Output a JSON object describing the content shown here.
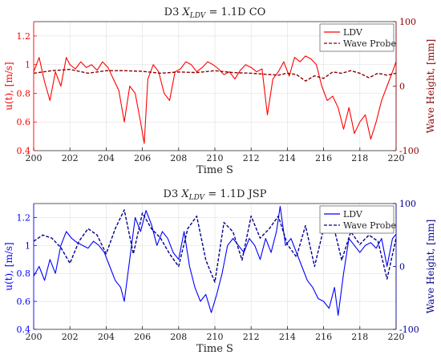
{
  "chart_data": [
    {
      "type": "line",
      "title": "D3 X_LDV = 1.1D CO",
      "title_main": "D3",
      "title_var": "X",
      "title_sub": "LDV",
      "title_rest": " = 1.1D CO",
      "xlabel": "Time S",
      "ylabel": "u(t), [m/s]",
      "y2label": "Wave Height, [mm]",
      "xlim": [
        200,
        220
      ],
      "ylim": [
        0.4,
        1.3
      ],
      "y2lim": [
        -100,
        100
      ],
      "xticks": [
        "200",
        "202",
        "204",
        "206",
        "208",
        "210",
        "212",
        "214",
        "216",
        "218",
        "220"
      ],
      "yticks": [
        "0.4",
        "0.6",
        "0.8",
        "1",
        "1.2"
      ],
      "y2ticks": [
        "-100",
        "0",
        "100"
      ],
      "grid": true,
      "legend_position": "top-right",
      "left_color": "#ff0000",
      "right_color": "#8b0000",
      "series": [
        {
          "name": "LDV",
          "axis": "left",
          "style": "solid",
          "color": "#ff0000",
          "x": [
            200.0,
            200.3,
            200.6,
            200.9,
            201.2,
            201.5,
            201.8,
            202.0,
            202.3,
            202.6,
            202.9,
            203.2,
            203.5,
            203.8,
            204.1,
            204.4,
            204.7,
            205.0,
            205.3,
            205.6,
            205.9,
            206.1,
            206.3,
            206.6,
            206.9,
            207.2,
            207.5,
            207.8,
            208.1,
            208.4,
            208.7,
            209.0,
            209.3,
            209.6,
            209.9,
            210.2,
            210.5,
            210.8,
            211.1,
            211.4,
            211.7,
            212.0,
            212.3,
            212.6,
            212.9,
            213.2,
            213.5,
            213.8,
            214.1,
            214.4,
            214.7,
            215.0,
            215.3,
            215.6,
            215.9,
            216.2,
            216.5,
            216.8,
            217.1,
            217.4,
            217.7,
            218.0,
            218.3,
            218.6,
            218.9,
            219.2,
            219.5,
            219.8,
            220.0
          ],
          "values": [
            0.95,
            1.05,
            0.88,
            0.75,
            0.95,
            0.85,
            1.05,
            1.0,
            0.97,
            1.02,
            0.98,
            1.0,
            0.96,
            1.02,
            0.98,
            0.9,
            0.82,
            0.6,
            0.85,
            0.8,
            0.6,
            0.45,
            0.9,
            1.0,
            0.95,
            0.8,
            0.75,
            0.95,
            0.97,
            1.02,
            1.0,
            0.95,
            0.98,
            1.02,
            1.0,
            0.97,
            0.93,
            0.95,
            0.9,
            0.96,
            1.0,
            0.98,
            0.95,
            0.97,
            0.65,
            0.9,
            0.95,
            1.02,
            0.92,
            1.05,
            1.02,
            1.06,
            1.04,
            1.0,
            0.85,
            0.75,
            0.78,
            0.7,
            0.55,
            0.7,
            0.52,
            0.6,
            0.65,
            0.48,
            0.6,
            0.75,
            0.85,
            0.95,
            1.02
          ]
        },
        {
          "name": "Wave Probe",
          "axis": "right",
          "style": "dashed",
          "color": "#8b0000",
          "x": [
            200.0,
            201.0,
            202.0,
            203.0,
            204.0,
            205.0,
            206.0,
            207.0,
            208.0,
            209.0,
            210.0,
            211.0,
            212.0,
            213.0,
            213.5,
            214.0,
            214.5,
            215.0,
            215.5,
            216.0,
            216.5,
            217.0,
            217.5,
            218.0,
            218.5,
            219.0,
            219.5,
            220.0
          ],
          "values": [
            20,
            24,
            26,
            20,
            24,
            24,
            23,
            20,
            22,
            21,
            24,
            21,
            20,
            18,
            17,
            20,
            18,
            8,
            16,
            12,
            22,
            20,
            24,
            20,
            13,
            20,
            17,
            20
          ]
        }
      ]
    },
    {
      "type": "line",
      "title": "D3 X_LDV = 1.1D JSP",
      "title_main": "D3",
      "title_var": "X",
      "title_sub": "LDV",
      "title_rest": " = 1.1D JSP",
      "xlabel": "Time S",
      "ylabel": "u(t), [m/s]",
      "y2label": "Wave Height, [mm]",
      "xlim": [
        200,
        220
      ],
      "ylim": [
        0.4,
        1.3
      ],
      "y2lim": [
        -100,
        100
      ],
      "xticks": [
        "200",
        "202",
        "204",
        "206",
        "208",
        "210",
        "212",
        "214",
        "216",
        "218",
        "220"
      ],
      "yticks": [
        "0.4",
        "0.6",
        "0.8",
        "1",
        "1.2"
      ],
      "y2ticks": [
        "-100",
        "0",
        "100"
      ],
      "grid": true,
      "legend_position": "top-right",
      "left_color": "#0000ff",
      "right_color": "#00008b",
      "series": [
        {
          "name": "LDV",
          "axis": "left",
          "style": "solid",
          "color": "#0000ff",
          "x": [
            200.0,
            200.3,
            200.6,
            200.9,
            201.2,
            201.5,
            201.8,
            202.1,
            202.4,
            202.7,
            203.0,
            203.3,
            203.6,
            203.9,
            204.2,
            204.5,
            204.8,
            205.0,
            205.3,
            205.6,
            205.9,
            206.2,
            206.5,
            206.8,
            207.1,
            207.4,
            207.7,
            208.0,
            208.3,
            208.6,
            208.9,
            209.2,
            209.5,
            209.8,
            210.1,
            210.4,
            210.7,
            211.0,
            211.3,
            211.6,
            211.9,
            212.2,
            212.5,
            212.8,
            213.1,
            213.4,
            213.6,
            213.9,
            214.2,
            214.5,
            214.8,
            215.1,
            215.4,
            215.7,
            216.0,
            216.3,
            216.6,
            216.8,
            217.1,
            217.4,
            217.7,
            218.0,
            218.3,
            218.6,
            218.9,
            219.2,
            219.5,
            219.8,
            220.0
          ],
          "values": [
            0.78,
            0.85,
            0.75,
            0.9,
            0.8,
            1.0,
            1.1,
            1.05,
            1.02,
            1.0,
            0.98,
            1.03,
            1.0,
            0.95,
            0.85,
            0.75,
            0.7,
            0.6,
            0.9,
            1.2,
            1.1,
            1.25,
            1.15,
            1.0,
            1.1,
            1.05,
            0.95,
            0.9,
            1.1,
            0.85,
            0.7,
            0.6,
            0.65,
            0.52,
            0.65,
            0.8,
            1.0,
            1.05,
            1.0,
            0.95,
            1.05,
            1.0,
            0.9,
            1.05,
            0.95,
            1.1,
            1.28,
            1.0,
            1.05,
            0.95,
            0.85,
            0.75,
            0.7,
            0.62,
            0.6,
            0.55,
            0.7,
            0.5,
            0.8,
            1.05,
            1.0,
            0.95,
            1.0,
            1.02,
            0.98,
            1.05,
            0.85,
            1.05,
            1.08
          ]
        },
        {
          "name": "Wave Probe",
          "axis": "right",
          "style": "dashed",
          "color": "#00008b",
          "x": [
            200.0,
            200.5,
            201.0,
            201.5,
            202.0,
            202.5,
            203.0,
            203.5,
            204.0,
            204.5,
            205.0,
            205.5,
            206.0,
            206.5,
            207.0,
            207.5,
            208.0,
            208.5,
            209.0,
            209.5,
            210.0,
            210.5,
            211.0,
            211.5,
            212.0,
            212.5,
            213.0,
            213.5,
            214.0,
            214.5,
            215.0,
            215.5,
            216.0,
            216.5,
            217.0,
            217.5,
            218.0,
            218.5,
            219.0,
            219.5,
            220.0
          ],
          "values": [
            40,
            50,
            45,
            30,
            5,
            40,
            60,
            50,
            20,
            60,
            90,
            20,
            85,
            60,
            45,
            20,
            0,
            60,
            80,
            10,
            -25,
            70,
            55,
            10,
            80,
            45,
            60,
            80,
            35,
            15,
            65,
            0,
            60,
            70,
            10,
            55,
            35,
            50,
            40,
            -20,
            45
          ]
        }
      ]
    }
  ]
}
